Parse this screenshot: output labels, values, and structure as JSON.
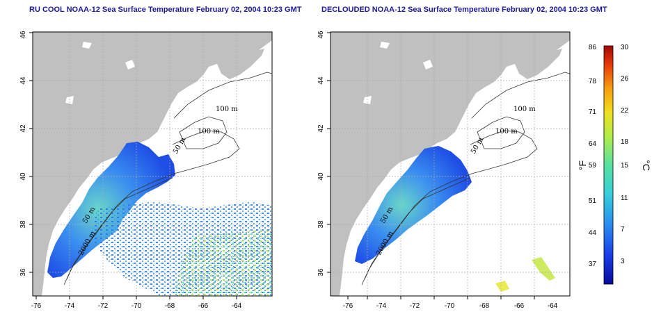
{
  "panels": [
    {
      "title": "RU COOL NOAA-12 Sea Surface Temperature February 02, 2004 10:23 GMT",
      "x_ticks": [
        "-76",
        "-74",
        "-72",
        "-70",
        "-68",
        "-66",
        "-64"
      ],
      "y_ticks": [
        "36",
        "38",
        "40",
        "42",
        "44",
        "46"
      ],
      "contour_labels": [
        "100 m",
        "100 m",
        "50 m",
        "50 m",
        "2000 m"
      ]
    },
    {
      "title": "DECLOUDED NOAA-12 Sea Surface Temperature February 02, 2004 10:23 GMT",
      "x_ticks": [
        "-76",
        "-74",
        "-72",
        "-70",
        "-68",
        "-66",
        "-64"
      ],
      "y_ticks": [
        "36",
        "38",
        "40",
        "42",
        "44",
        "46"
      ],
      "contour_labels": [
        "100 m",
        "100 m",
        "50 m",
        "50 m",
        "2000 m"
      ]
    }
  ],
  "colorbar": {
    "fahrenheit_ticks": [
      "86",
      "78",
      "71",
      "64",
      "59",
      "51",
      "44",
      "37"
    ],
    "celsius_ticks": [
      "30",
      "26",
      "22",
      "18",
      "15",
      "11",
      "7",
      "3"
    ],
    "fahrenheit_unit": "°F",
    "celsius_unit": "°C",
    "colors": [
      "#0a0a9a",
      "#1a3ce8",
      "#2a8cf0",
      "#36d0d8",
      "#5ae0a0",
      "#b0ec4a",
      "#f0e020",
      "#f5a010",
      "#e83a0a",
      "#a00808"
    ]
  },
  "colors": {
    "land": "#c0c0c0",
    "sea": "#ffffff",
    "grid": "#aaaaaa",
    "title": "#1a1a9a"
  }
}
